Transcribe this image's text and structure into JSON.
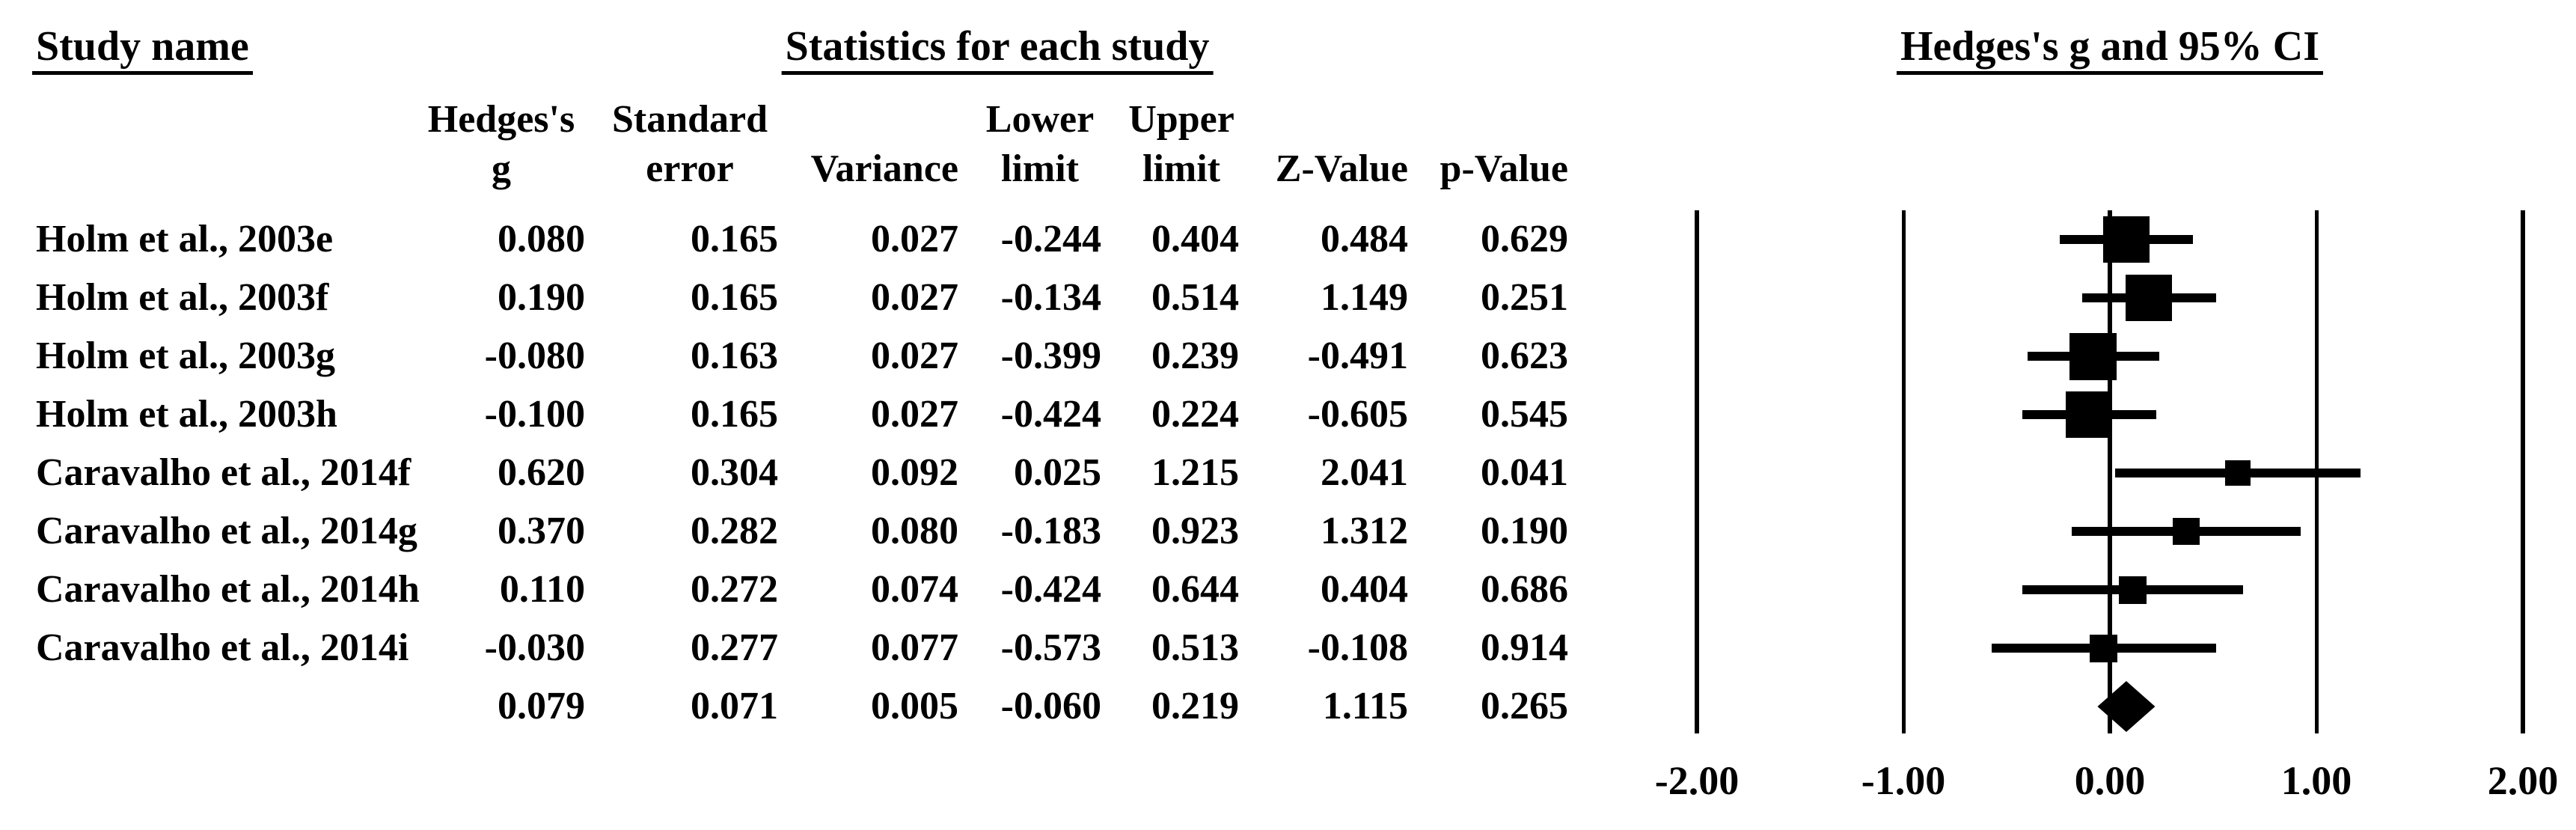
{
  "page": {
    "background": "#ffffff",
    "foreground": "#000000"
  },
  "headers": {
    "study_name": "Study name",
    "statistics": "Statistics for each study",
    "plot": "Hedges's g and 95% CI"
  },
  "columns": [
    {
      "id": "hedges_g",
      "lines": [
        "Hedges's",
        "g"
      ]
    },
    {
      "id": "standard_error",
      "lines": [
        "Standard",
        "error"
      ]
    },
    {
      "id": "variance",
      "lines": [
        "",
        "Variance"
      ]
    },
    {
      "id": "lower_limit",
      "lines": [
        "Lower",
        "limit"
      ]
    },
    {
      "id": "upper_limit",
      "lines": [
        "Upper",
        "limit"
      ]
    },
    {
      "id": "z_value",
      "lines": [
        "",
        "Z-Value"
      ]
    },
    {
      "id": "p_value",
      "lines": [
        "",
        "p-Value"
      ]
    }
  ],
  "chart_data": {
    "type": "forest",
    "title": "Hedges's g and 95% CI",
    "section_titles": [
      "Study name",
      "Statistics for each study",
      "Hedges's g and 95% CI"
    ],
    "effect_measure": "Hedges's g",
    "xlim": [
      -2,
      2
    ],
    "tick_labels": [
      "-2.00",
      "-1.00",
      "0.00",
      "1.00",
      "2.00"
    ],
    "tick_values": [
      -2,
      -1,
      0,
      1,
      2
    ],
    "grid": "vertical reference lines at every tick",
    "legend_position": "none",
    "stat_columns": [
      "Hedges's g",
      "Standard error",
      "Variance",
      "Lower limit",
      "Upper limit",
      "Z-Value",
      "p-Value"
    ],
    "marker_color": "#000000",
    "studies": [
      {
        "study": "Holm et al., 2003e",
        "hedges_g": "0.080",
        "standard_error": "0.165",
        "variance": "0.027",
        "lower_limit": "-0.244",
        "upper_limit": "0.404",
        "z_value": "0.484",
        "p_value": "0.629",
        "summary": false
      },
      {
        "study": "Holm et al., 2003f",
        "hedges_g": "0.190",
        "standard_error": "0.165",
        "variance": "0.027",
        "lower_limit": "-0.134",
        "upper_limit": "0.514",
        "z_value": "1.149",
        "p_value": "0.251",
        "summary": false
      },
      {
        "study": "Holm et al., 2003g",
        "hedges_g": "-0.080",
        "standard_error": "0.163",
        "variance": "0.027",
        "lower_limit": "-0.399",
        "upper_limit": "0.239",
        "z_value": "-0.491",
        "p_value": "0.623",
        "summary": false
      },
      {
        "study": "Holm et al., 2003h",
        "hedges_g": "-0.100",
        "standard_error": "0.165",
        "variance": "0.027",
        "lower_limit": "-0.424",
        "upper_limit": "0.224",
        "z_value": "-0.605",
        "p_value": "0.545",
        "summary": false
      },
      {
        "study": "Caravalho et al., 2014f",
        "hedges_g": "0.620",
        "standard_error": "0.304",
        "variance": "0.092",
        "lower_limit": "0.025",
        "upper_limit": "1.215",
        "z_value": "2.041",
        "p_value": "0.041",
        "summary": false
      },
      {
        "study": "Caravalho et al., 2014g",
        "hedges_g": "0.370",
        "standard_error": "0.282",
        "variance": "0.080",
        "lower_limit": "-0.183",
        "upper_limit": "0.923",
        "z_value": "1.312",
        "p_value": "0.190",
        "summary": false
      },
      {
        "study": "Caravalho et al., 2014h",
        "hedges_g": "0.110",
        "standard_error": "0.272",
        "variance": "0.074",
        "lower_limit": "-0.424",
        "upper_limit": "0.644",
        "z_value": "0.404",
        "p_value": "0.686",
        "summary": false
      },
      {
        "study": "Caravalho et al., 2014i",
        "hedges_g": "-0.030",
        "standard_error": "0.277",
        "variance": "0.077",
        "lower_limit": "-0.573",
        "upper_limit": "0.513",
        "z_value": "-0.108",
        "p_value": "0.914",
        "summary": false
      },
      {
        "study": "",
        "hedges_g": "0.079",
        "standard_error": "0.071",
        "variance": "0.005",
        "lower_limit": "-0.060",
        "upper_limit": "0.219",
        "z_value": "1.115",
        "p_value": "0.265",
        "summary": true
      }
    ]
  }
}
